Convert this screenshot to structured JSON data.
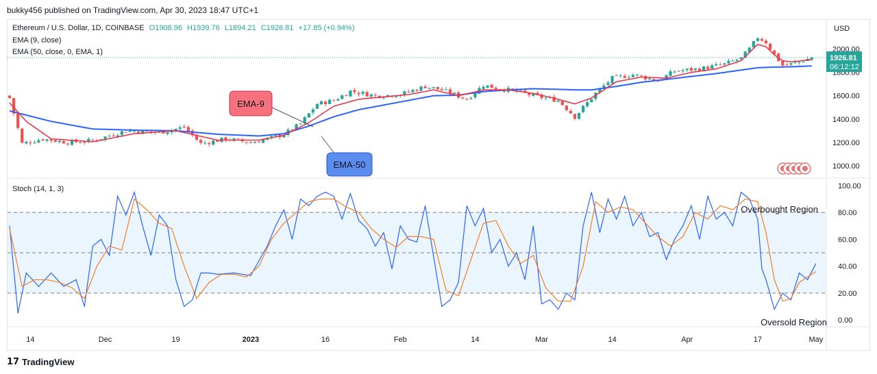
{
  "header": {
    "publisher_line": "bukky456 published on TradingView.com, Apr 30, 2023 18:47 UTC+1"
  },
  "legend": {
    "symbol": "Ethereum / U.S. Dollar, 1D, COINBASE",
    "open": "O1908.96",
    "high": "H1939.76",
    "low": "L1894.21",
    "close": "C1926.81",
    "change": "+17.85 (+0.94%)",
    "ema9": "EMA (9, close)",
    "ema50": "EMA (50, close, 0, EMA, 1)",
    "stoch": "Stoch (14, 1, 3)"
  },
  "price_axis": {
    "unit": "USD",
    "current_price": "1926.81",
    "countdown": "06:12:12"
  },
  "annotations": {
    "ema9_label": "EMA-9",
    "ema50_label": "EMA-50",
    "overbought_label": "Overbought Region",
    "oversold_label": "Oversold Region"
  },
  "colors": {
    "up": "#26a69a",
    "down": "#ef5350",
    "ema9": "#e8364a",
    "ema50": "#2962ff",
    "stoch_k": "#2962ff",
    "stoch_d": "#f57c21",
    "band": "#e3f2fd",
    "ema9_box": "#f7707d",
    "ema50_box": "#5b8def"
  },
  "footer": {
    "brand": "TradingView"
  },
  "chart_data": [
    {
      "type": "candlestick",
      "title": "Ethereum / U.S. Dollar, 1D, COINBASE",
      "ylabel": "USD",
      "ylim": [
        900,
        2250
      ],
      "y_ticks": [
        "1000.00",
        "1200.00",
        "1400.00",
        "1600.00",
        "1800.00",
        "2000.00"
      ],
      "y_tick_values": [
        1000,
        1200,
        1400,
        1600,
        1800,
        2000
      ],
      "x_ticks": [
        "14",
        "Dec",
        "19",
        "2023",
        "16",
        "Feb",
        "14",
        "Mar",
        "14",
        "Apr",
        "17",
        "May"
      ],
      "x_tick_day_index": [
        5,
        23,
        40,
        58,
        76,
        94,
        112,
        128,
        145,
        163,
        180,
        194
      ],
      "series_keypoints_close": {
        "day_index": [
          0,
          3,
          8,
          14,
          20,
          28,
          36,
          42,
          46,
          52,
          58,
          62,
          66,
          70,
          74,
          78,
          82,
          88,
          94,
          100,
          104,
          110,
          114,
          118,
          122,
          126,
          132,
          136,
          138,
          141,
          145,
          150,
          156,
          160,
          166,
          172,
          176,
          178,
          180,
          182,
          184,
          186,
          188,
          190,
          193
        ],
        "close": [
          1580,
          1190,
          1230,
          1200,
          1215,
          1300,
          1285,
          1330,
          1190,
          1230,
          1200,
          1230,
          1270,
          1360,
          1530,
          1560,
          1640,
          1600,
          1610,
          1680,
          1650,
          1570,
          1690,
          1660,
          1640,
          1600,
          1560,
          1420,
          1500,
          1620,
          1750,
          1780,
          1730,
          1810,
          1830,
          1870,
          1920,
          2000,
          2100,
          2060,
          1950,
          1860,
          1870,
          1890,
          1927
        ]
      },
      "ema9_keypoints": {
        "day_index": [
          0,
          4,
          10,
          20,
          30,
          40,
          50,
          60,
          66,
          72,
          78,
          84,
          90,
          96,
          102,
          108,
          114,
          120,
          126,
          132,
          136,
          140,
          146,
          152,
          158,
          164,
          170,
          176,
          180,
          182,
          184,
          186,
          188,
          193
        ],
        "value": [
          1540,
          1380,
          1230,
          1205,
          1275,
          1300,
          1220,
          1220,
          1260,
          1370,
          1510,
          1570,
          1590,
          1610,
          1650,
          1600,
          1650,
          1650,
          1620,
          1570,
          1530,
          1580,
          1720,
          1760,
          1750,
          1800,
          1830,
          1900,
          2040,
          2020,
          1950,
          1900,
          1890,
          1910
        ]
      },
      "ema50_keypoints": {
        "day_index": [
          0,
          10,
          20,
          30,
          40,
          50,
          60,
          66,
          72,
          78,
          84,
          90,
          96,
          102,
          108,
          114,
          120,
          126,
          132,
          136,
          140,
          146,
          152,
          158,
          164,
          170,
          176,
          180,
          184,
          188,
          193
        ],
        "value": [
          1470,
          1380,
          1315,
          1305,
          1300,
          1270,
          1255,
          1275,
          1340,
          1420,
          1480,
          1520,
          1560,
          1600,
          1605,
          1635,
          1650,
          1660,
          1655,
          1650,
          1650,
          1680,
          1715,
          1740,
          1765,
          1790,
          1820,
          1840,
          1845,
          1848,
          1855
        ]
      },
      "last_close": 1926.81
    },
    {
      "type": "line",
      "title": "Stoch (14, 1, 3)",
      "ylim": [
        -5,
        105
      ],
      "y_ticks": [
        "0.00",
        "20.00",
        "40.00",
        "60.00",
        "80.00",
        "100.00"
      ],
      "y_tick_values": [
        0,
        20,
        40,
        60,
        80,
        100
      ],
      "band": [
        20,
        80
      ],
      "midline": 50,
      "series": [
        {
          "name": "%K",
          "day_index": [
            0,
            2,
            4,
            7,
            10,
            13,
            16,
            18,
            20,
            22,
            24,
            26,
            28,
            30,
            32,
            34,
            36,
            38,
            40,
            42,
            44,
            46,
            48,
            50,
            54,
            58,
            62,
            64,
            66,
            68,
            70,
            72,
            74,
            76,
            78,
            80,
            82,
            84,
            86,
            88,
            90,
            92,
            94,
            96,
            98,
            100,
            104,
            106,
            108,
            110,
            112,
            114,
            116,
            118,
            120,
            122,
            124,
            126,
            128,
            130,
            132,
            134,
            136,
            138,
            140,
            142,
            144,
            146,
            148,
            150,
            152,
            154,
            156,
            158,
            160,
            162,
            164,
            166,
            168,
            170,
            172,
            174,
            176,
            178,
            180,
            181,
            182,
            184,
            186,
            188,
            190,
            192,
            194
          ],
          "value": [
            70,
            5,
            35,
            25,
            35,
            25,
            30,
            10,
            55,
            60,
            48,
            92,
            78,
            95,
            70,
            48,
            78,
            70,
            30,
            10,
            15,
            35,
            35,
            34,
            35,
            33,
            55,
            70,
            82,
            60,
            90,
            85,
            92,
            95,
            92,
            75,
            94,
            74,
            68,
            55,
            65,
            38,
            70,
            60,
            58,
            85,
            10,
            15,
            28,
            85,
            70,
            83,
            50,
            60,
            40,
            50,
            30,
            70,
            12,
            15,
            8,
            20,
            15,
            70,
            95,
            65,
            90,
            75,
            92,
            70,
            80,
            62,
            65,
            45,
            60,
            70,
            85,
            60,
            92,
            75,
            80,
            70,
            95,
            90,
            75,
            38,
            30,
            8,
            20,
            15,
            35,
            30,
            42
          ]
        },
        {
          "name": "%D",
          "day_index": [
            0,
            3,
            6,
            9,
            12,
            15,
            18,
            21,
            24,
            27,
            30,
            33,
            36,
            39,
            42,
            45,
            48,
            51,
            54,
            57,
            60,
            63,
            66,
            69,
            72,
            75,
            78,
            81,
            84,
            87,
            90,
            93,
            96,
            99,
            102,
            105,
            108,
            111,
            114,
            117,
            120,
            123,
            126,
            129,
            132,
            135,
            138,
            141,
            144,
            147,
            150,
            153,
            156,
            159,
            162,
            165,
            168,
            171,
            174,
            177,
            180,
            182,
            184,
            186,
            188,
            190,
            192,
            194
          ],
          "value": [
            68,
            25,
            30,
            30,
            28,
            24,
            16,
            40,
            55,
            52,
            90,
            82,
            72,
            68,
            40,
            16,
            28,
            34,
            34,
            32,
            40,
            60,
            72,
            80,
            88,
            90,
            90,
            84,
            80,
            68,
            60,
            54,
            62,
            62,
            60,
            22,
            18,
            45,
            72,
            74,
            55,
            42,
            48,
            24,
            14,
            14,
            40,
            88,
            80,
            84,
            82,
            72,
            62,
            55,
            62,
            80,
            75,
            85,
            82,
            90,
            88,
            65,
            30,
            14,
            16,
            28,
            32,
            36
          ]
        }
      ]
    }
  ]
}
